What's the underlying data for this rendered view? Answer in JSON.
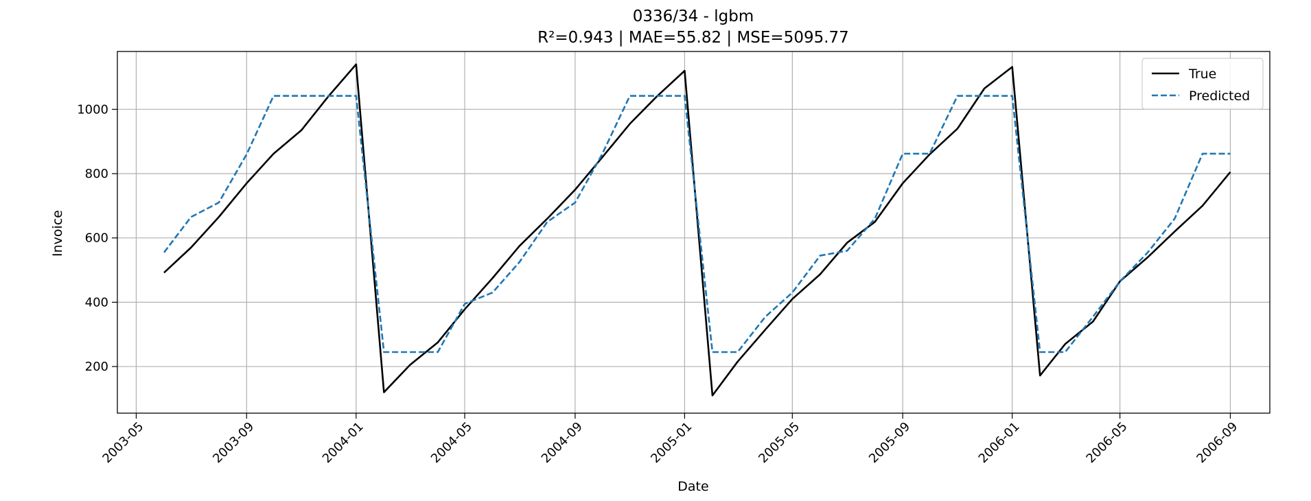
{
  "chart_data": {
    "type": "line",
    "title": "0336/34 - lgbm",
    "subtitle": "R²=0.943 | MAE=55.82 | MSE=5095.77",
    "xlabel": "Date",
    "ylabel": "Invoice",
    "xlim": [
      "2003-04-10",
      "2006-10-15"
    ],
    "ylim": [
      55,
      1180
    ],
    "grid": true,
    "legend_position": "top-right",
    "x_ticks": [
      "2003-05",
      "2003-09",
      "2004-01",
      "2004-05",
      "2004-09",
      "2005-01",
      "2005-05",
      "2005-09",
      "2006-01",
      "2006-05",
      "2006-09"
    ],
    "y_ticks": [
      200,
      400,
      600,
      800,
      1000
    ],
    "x": [
      "2003-06",
      "2003-07",
      "2003-08",
      "2003-09",
      "2003-10",
      "2003-11",
      "2003-12",
      "2004-01",
      "2004-02",
      "2004-03",
      "2004-04",
      "2004-05",
      "2004-06",
      "2004-07",
      "2004-08",
      "2004-09",
      "2004-10",
      "2004-11",
      "2004-12",
      "2005-01",
      "2005-02",
      "2005-03",
      "2005-04",
      "2005-05",
      "2005-06",
      "2005-07",
      "2005-08",
      "2005-09",
      "2005-10",
      "2005-11",
      "2005-12",
      "2006-01",
      "2006-02",
      "2006-03",
      "2006-04",
      "2006-05",
      "2006-06",
      "2006-07",
      "2006-08",
      "2006-09"
    ],
    "series": [
      {
        "name": "True",
        "color": "#000000",
        "style": "solid",
        "values": [
          492,
          570,
          665,
          770,
          862,
          935,
          1040,
          1140,
          120,
          205,
          275,
          378,
          475,
          575,
          660,
          750,
          850,
          955,
          1040,
          1120,
          110,
          215,
          315,
          410,
          487,
          585,
          650,
          770,
          860,
          940,
          1065,
          1132,
          172,
          270,
          340,
          465,
          540,
          620,
          700,
          805
        ]
      },
      {
        "name": "Predicted",
        "color": "#1f77b4",
        "style": "dashed",
        "values": [
          555,
          665,
          710,
          860,
          1042,
          1042,
          1042,
          1042,
          245,
          245,
          245,
          395,
          430,
          525,
          650,
          710,
          860,
          1042,
          1042,
          1042,
          245,
          245,
          355,
          430,
          545,
          560,
          660,
          862,
          862,
          1042,
          1042,
          1042,
          245,
          245,
          355,
          465,
          555,
          660,
          862,
          862
        ]
      }
    ]
  }
}
